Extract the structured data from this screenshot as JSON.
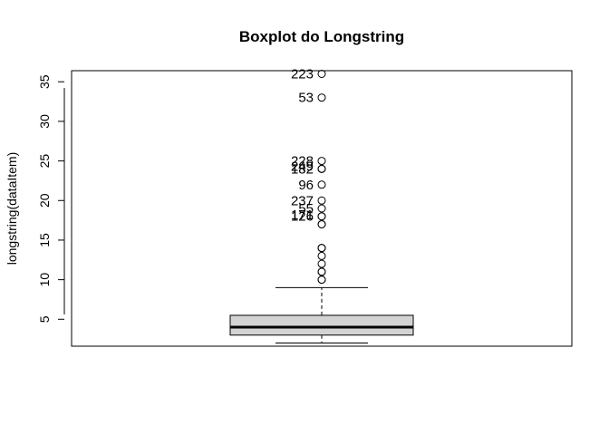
{
  "chart_data": {
    "type": "boxplot",
    "title": "Boxplot do Longstring",
    "ylabel": "longstring(dataItem)",
    "xlabel": "",
    "ylim": [
      1.6,
      36.4
    ],
    "yticks": [
      5,
      10,
      15,
      20,
      25,
      30,
      35
    ],
    "box": {
      "whisker_low": 2,
      "q1": 3,
      "median": 4,
      "q3": 5.5,
      "whisker_high": 9
    },
    "outliers": [
      10,
      10,
      11,
      11,
      12,
      13,
      14,
      14,
      17,
      17,
      18,
      18,
      19,
      20,
      22,
      24,
      24,
      25,
      33,
      36
    ],
    "labeled_outliers": [
      {
        "label": "223",
        "value": 36
      },
      {
        "label": "53",
        "value": 33
      },
      {
        "label": "228",
        "value": 25
      },
      {
        "label": "249",
        "value": 24.3
      },
      {
        "label": "182",
        "value": 24
      },
      {
        "label": "96",
        "value": 22
      },
      {
        "label": "237",
        "value": 20
      },
      {
        "label": "55",
        "value": 19
      },
      {
        "label": "171",
        "value": 18.2
      },
      {
        "label": "126",
        "value": 18
      }
    ],
    "grid": false,
    "colors": {
      "box_fill": "#d3d3d3",
      "stroke": "#000000"
    }
  }
}
